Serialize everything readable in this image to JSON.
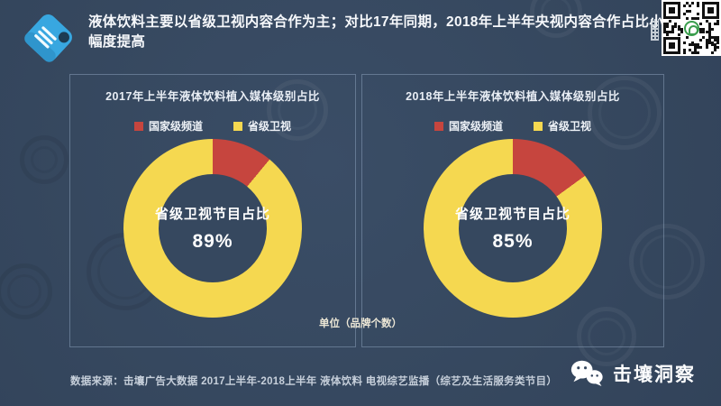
{
  "header": {
    "title": "液体饮料主要以省级卫视内容合作为主；对比17年同期，2018年上半年央视内容合作占比小幅度提高"
  },
  "unit_label": "单位（品牌个数）",
  "source_note": "数据来源：击壤广告大数据 2017上半年-2018上半年 液体饮料 电视综艺监播（综艺及生活服务类节目）",
  "brand": {
    "name": "击壤洞察",
    "icon": "wechat-icon"
  },
  "icons": {
    "header_tag": "tag-icon",
    "qr": "qr-code"
  },
  "colors": {
    "background": "#36485f",
    "national_channel_red": "#c6453e",
    "provincial_tv_yellow": "#f5d850",
    "tag_blue": "#38a7e0"
  },
  "chart_data": [
    {
      "type": "pie",
      "subtype": "donut",
      "title": "2017年上半年液体饮料植入媒体级别占比",
      "labels": [
        "国家级频道",
        "省级卫视"
      ],
      "values": [
        11,
        89
      ],
      "colors": [
        "#c6453e",
        "#f5d850"
      ],
      "center_label": "省级卫视节目占比",
      "center_value": "89%",
      "unit": "品牌个数",
      "legend_position": "top",
      "start_angle_deg": 0,
      "direction": "clockwise"
    },
    {
      "type": "pie",
      "subtype": "donut",
      "title": "2018年上半年液体饮料植入媒体级别占比",
      "labels": [
        "国家级频道",
        "省级卫视"
      ],
      "values": [
        15,
        85
      ],
      "colors": [
        "#c6453e",
        "#f5d850"
      ],
      "center_label": "省级卫视节目占比",
      "center_value": "85%",
      "unit": "品牌个数",
      "legend_position": "top",
      "start_angle_deg": 0,
      "direction": "clockwise"
    }
  ]
}
